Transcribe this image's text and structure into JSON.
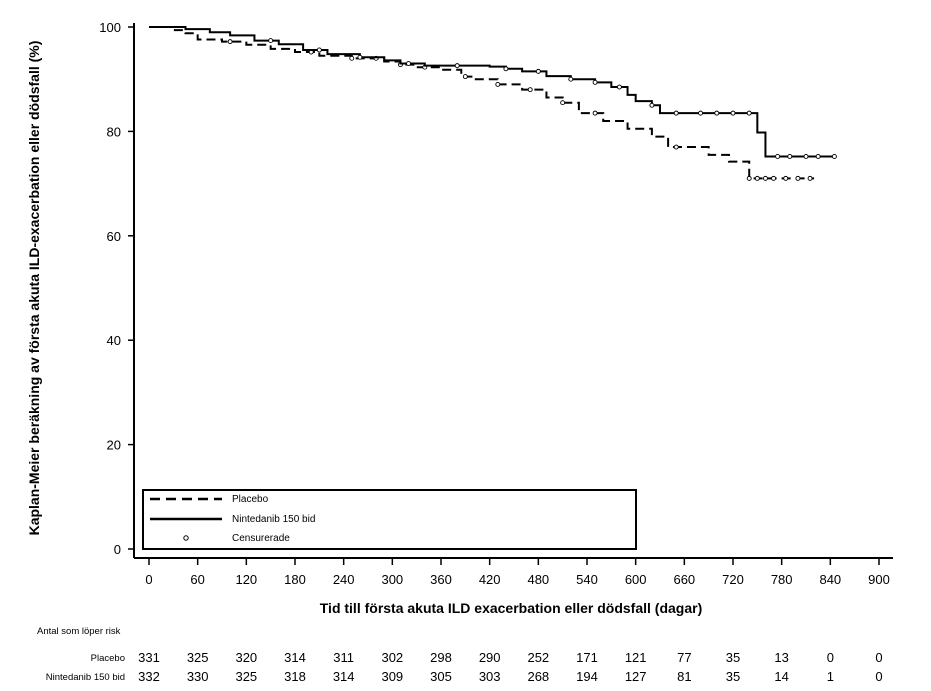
{
  "chart_data": {
    "type": "line",
    "title": "",
    "xlabel": "Tid till första akuta ILD exacerbation eller dödsfall (dagar)",
    "ylabel": "Kaplan-Meier beräkning av första akuta ILD-exacerbation eller dödsfall (%)",
    "xlim": [
      0,
      900
    ],
    "ylim": [
      0,
      100
    ],
    "x_ticks": [
      0,
      60,
      120,
      180,
      240,
      300,
      360,
      420,
      480,
      540,
      600,
      660,
      720,
      780,
      840,
      900
    ],
    "y_ticks": [
      0,
      20,
      40,
      60,
      80,
      100
    ],
    "legend_position": "bottom-left",
    "legend": {
      "placebo": "Placebo",
      "nintedanib": "Nintedanib 150 bid",
      "censored": "Censurerade"
    },
    "series": [
      {
        "name": "Placebo",
        "style": "dashed",
        "steps": [
          [
            0,
            100
          ],
          [
            30,
            99.4
          ],
          [
            45,
            98.8
          ],
          [
            60,
            97.6
          ],
          [
            90,
            97.2
          ],
          [
            120,
            96.6
          ],
          [
            150,
            95.8
          ],
          [
            180,
            95.2
          ],
          [
            210,
            94.5
          ],
          [
            250,
            94.0
          ],
          [
            290,
            93.4
          ],
          [
            310,
            92.8
          ],
          [
            330,
            92.3
          ],
          [
            360,
            91.8
          ],
          [
            385,
            90.5
          ],
          [
            400,
            90.0
          ],
          [
            430,
            89.0
          ],
          [
            460,
            88.0
          ],
          [
            490,
            86.5
          ],
          [
            510,
            85.5
          ],
          [
            530,
            83.5
          ],
          [
            560,
            82.0
          ],
          [
            590,
            80.5
          ],
          [
            620,
            79.0
          ],
          [
            640,
            77.0
          ],
          [
            690,
            75.5
          ],
          [
            715,
            74.2
          ],
          [
            740,
            71.0
          ],
          [
            820,
            71.0
          ]
        ],
        "censored": [
          100,
          200,
          250,
          280,
          310,
          340,
          390,
          430,
          470,
          510,
          550,
          650,
          740,
          750,
          760,
          770,
          785,
          800,
          815
        ]
      },
      {
        "name": "Nintedanib 150 bid",
        "style": "solid",
        "steps": [
          [
            0,
            100
          ],
          [
            45,
            99.6
          ],
          [
            75,
            99.0
          ],
          [
            100,
            98.4
          ],
          [
            130,
            97.4
          ],
          [
            160,
            96.7
          ],
          [
            190,
            95.6
          ],
          [
            220,
            94.8
          ],
          [
            260,
            94.2
          ],
          [
            290,
            93.6
          ],
          [
            310,
            93.0
          ],
          [
            340,
            92.6
          ],
          [
            420,
            92.4
          ],
          [
            440,
            92.0
          ],
          [
            460,
            91.5
          ],
          [
            490,
            90.6
          ],
          [
            520,
            90.0
          ],
          [
            550,
            89.4
          ],
          [
            570,
            88.5
          ],
          [
            590,
            87.0
          ],
          [
            600,
            85.8
          ],
          [
            620,
            85.0
          ],
          [
            630,
            83.5
          ],
          [
            700,
            83.5
          ],
          [
            745,
            83.5
          ],
          [
            750,
            79.8
          ],
          [
            760,
            75.2
          ],
          [
            800,
            75.2
          ],
          [
            845,
            75.2
          ]
        ],
        "censored": [
          150,
          210,
          260,
          320,
          380,
          440,
          480,
          520,
          550,
          580,
          620,
          650,
          680,
          700,
          720,
          740,
          775,
          790,
          810,
          825,
          845
        ]
      }
    ],
    "risk_table": {
      "title": "Antal som löper risk",
      "times": [
        0,
        60,
        120,
        180,
        240,
        300,
        360,
        420,
        480,
        540,
        600,
        660,
        720,
        780,
        840,
        900
      ],
      "rows": [
        {
          "label": "Placebo",
          "values": [
            "331",
            "325",
            "320",
            "314",
            "311",
            "302",
            "298",
            "290",
            "252",
            "171",
            "121",
            "77",
            "35",
            "13",
            "0",
            "0"
          ]
        },
        {
          "label": "Nintedanib 150 bid",
          "values": [
            "332",
            "330",
            "325",
            "318",
            "314",
            "309",
            "305",
            "303",
            "268",
            "194",
            "127",
            "81",
            "35",
            "14",
            "1",
            "0"
          ]
        }
      ]
    }
  }
}
